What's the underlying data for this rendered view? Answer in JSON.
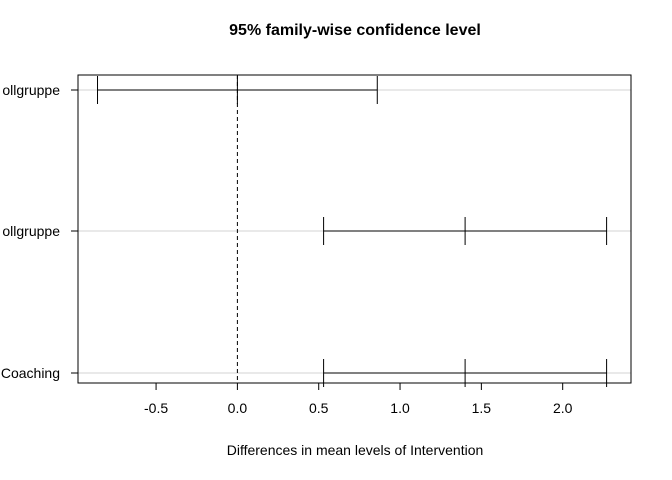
{
  "chart_data": {
    "type": "tukey_hsd_intervals",
    "title": "95% family-wise confidence level",
    "xlabel": "Differences in mean levels of Intervention",
    "ylabel": "",
    "xlim": [
      -0.98,
      2.42
    ],
    "x_ticks": [
      -0.5,
      0.0,
      0.5,
      1.0,
      1.5,
      2.0
    ],
    "x_tick_labels": [
      "-0.5",
      "0.0",
      "0.5",
      "1.0",
      "1.5",
      "2.0"
    ],
    "reference_line": 0,
    "grid": "horizontal lines at each comparison",
    "comparisons": [
      {
        "label": "ollgruppe",
        "lwr": -0.86,
        "diff": 0.0,
        "upr": 0.86
      },
      {
        "label": "ollgruppe",
        "lwr": 0.53,
        "diff": 1.4,
        "upr": 2.27
      },
      {
        "label": "Coaching",
        "lwr": 0.53,
        "diff": 1.4,
        "upr": 2.27
      }
    ]
  }
}
